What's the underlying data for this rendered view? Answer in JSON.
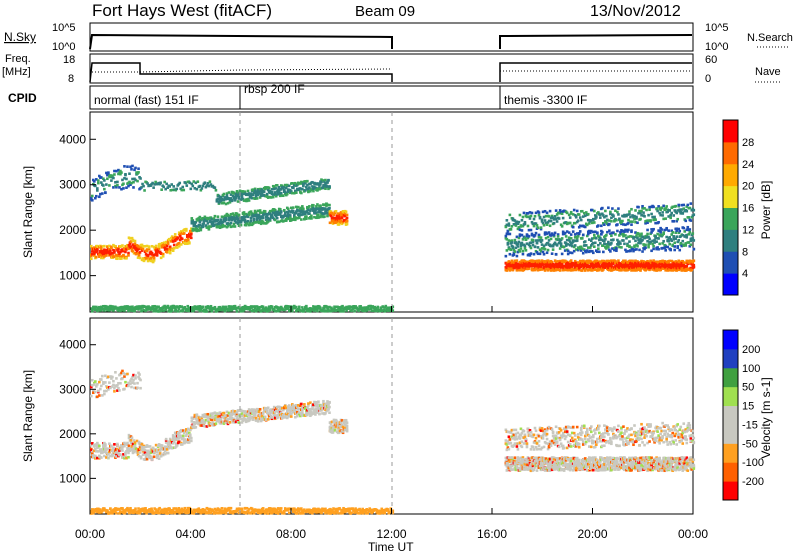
{
  "header": {
    "radar": "Fort Hays West (fitACF)",
    "beam": "Beam 09",
    "date": "13/Nov/2012"
  },
  "status_panels": {
    "nsky_label": "N.Sky",
    "nsky_ticks": [
      "10^5",
      "10^0"
    ],
    "nsearch_label": "N.Search",
    "nsearch_ticks": [
      "10^5",
      "10^0"
    ],
    "freq_label_1": "Freq.",
    "freq_label_2": "[MHz]",
    "freq_ticks": [
      "18",
      "8"
    ],
    "nave_label": "Nave",
    "nave_ticks": [
      "60",
      "0"
    ],
    "cpid_label": "CPID",
    "cpid_segments": [
      {
        "label": "normal (fast) 151 IF",
        "start_hour": 0
      },
      {
        "label": "rbsp 200 IF",
        "start_hour": 6
      },
      {
        "label": "themis -3300 IF",
        "start_hour": 16.5
      }
    ]
  },
  "chart_data": [
    {
      "type": "heatmap",
      "title": "Power",
      "ylabel": "Slant Range [km]",
      "colorbar_label": "Power [dB]",
      "colorbar_ticks": [
        "28",
        "24",
        "20",
        "16",
        "12",
        "8",
        "4"
      ],
      "colorbar_colors": [
        "#0000ff",
        "#1f4fb3",
        "#2f7f7f",
        "#3aa55a",
        "#f0e020",
        "#ffaa00",
        "#ff6a00",
        "#ff0000"
      ],
      "xlim_hours": [
        0,
        24
      ],
      "ylim": [
        200,
        4600
      ],
      "data_gaps_hours": [
        [
          12,
          16.5
        ]
      ],
      "yticks": [
        "4000",
        "3000",
        "2000",
        "1000"
      ]
    },
    {
      "type": "heatmap",
      "title": "Velocity",
      "ylabel": "Slant Range [km]",
      "colorbar_label": "Velocity [m s-1]",
      "colorbar_ticks": [
        "200",
        "100",
        "50",
        "15",
        "-15",
        "-50",
        "-100",
        "-200"
      ],
      "colorbar_colors": [
        "#ff0000",
        "#ff6000",
        "#ffa020",
        "#c8c8c0",
        "#c8c8c0",
        "#a0e050",
        "#40a040",
        "#2040c0",
        "#0000ff"
      ],
      "xlim_hours": [
        0,
        24
      ],
      "ylim": [
        200,
        4600
      ],
      "yticks": [
        "4000",
        "3000",
        "2000",
        "1000"
      ]
    }
  ],
  "xaxis": {
    "tick_labels": [
      "00:00",
      "04:00",
      "08:00",
      "12:00",
      "16:00",
      "20:00",
      "00:00"
    ],
    "label": "Time UT"
  }
}
